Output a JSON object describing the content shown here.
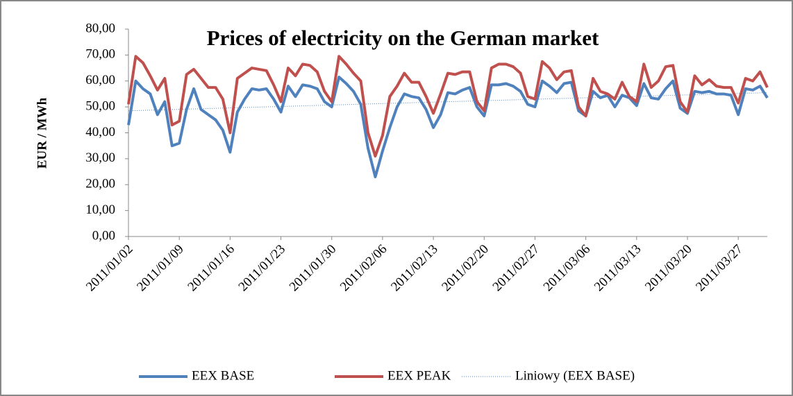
{
  "chart_data": {
    "type": "line",
    "title": "Prices of electricity on the German market",
    "y_label": "EUR / MWh",
    "categories": [
      "2011/01/02",
      null,
      null,
      null,
      null,
      null,
      null,
      "2011/01/09",
      null,
      null,
      null,
      null,
      null,
      null,
      "2011/01/16",
      null,
      null,
      null,
      null,
      null,
      null,
      "2011/01/23",
      null,
      null,
      null,
      null,
      null,
      null,
      "2011/01/30",
      null,
      null,
      null,
      null,
      null,
      null,
      "2011/02/06",
      null,
      null,
      null,
      null,
      null,
      null,
      "2011/02/13",
      null,
      null,
      null,
      null,
      null,
      null,
      "2011/02/20",
      null,
      null,
      null,
      null,
      null,
      null,
      "2011/02/27",
      null,
      null,
      null,
      null,
      null,
      null,
      "2011/03/06",
      null,
      null,
      null,
      null,
      null,
      null,
      "2011/03/13",
      null,
      null,
      null,
      null,
      null,
      null,
      "2011/03/20",
      null,
      null,
      null,
      null,
      null,
      null,
      "2011/03/27",
      null,
      null,
      null,
      null
    ],
    "series": [
      {
        "name": "EEX BASE",
        "color": "#4f81bd",
        "values": [
          43,
          60,
          57,
          55,
          47,
          52,
          35,
          36,
          49,
          57,
          49,
          47,
          45,
          41,
          32.5,
          48,
          53,
          57,
          56.5,
          57,
          53,
          48,
          58,
          54,
          58.5,
          58,
          57,
          52,
          50,
          61.5,
          59,
          56,
          51,
          34,
          23,
          33,
          42,
          50,
          55,
          54,
          53.5,
          49,
          42,
          47,
          55.5,
          55,
          56.5,
          57.5,
          50,
          46.5,
          58.5,
          58.5,
          59,
          58,
          56,
          51,
          50,
          60,
          58,
          55.5,
          59,
          59.5,
          48.5,
          46.5,
          56,
          53.5,
          54.5,
          50,
          54.5,
          53.5,
          50.5,
          59,
          53.5,
          53,
          57,
          60,
          49.5,
          47.5,
          56,
          55.5,
          56,
          55,
          55,
          54.5,
          47,
          57,
          56.5,
          58,
          53.5
        ]
      },
      {
        "name": "EEX PEAK",
        "color": "#c0504d",
        "values": [
          51,
          69.5,
          67,
          62,
          56.5,
          61,
          43,
          44.5,
          62.5,
          64.5,
          61,
          57.5,
          57.5,
          53,
          40,
          61,
          63,
          65,
          64.5,
          64,
          58.5,
          52,
          65,
          62,
          66.5,
          66,
          63.5,
          56,
          52,
          69.5,
          66.5,
          63,
          60,
          40,
          31,
          39,
          54,
          58,
          63,
          59.5,
          59.5,
          54,
          47.5,
          55,
          63,
          62.5,
          63.5,
          63.5,
          52,
          48.5,
          65,
          66.5,
          66.5,
          65.5,
          63,
          54,
          53,
          67.5,
          65,
          60.5,
          63.5,
          64,
          50,
          46.5,
          61,
          56,
          55,
          53,
          59.5,
          54,
          52,
          66.5,
          57.5,
          60,
          65.5,
          66,
          52,
          48,
          62,
          58.5,
          60.5,
          58,
          57.5,
          57.5,
          51.5,
          61,
          60,
          63.5,
          57.5
        ]
      }
    ],
    "trendline": {
      "name": "Liniowy (EEX BASE)",
      "color": "#4f81bd",
      "start": 48.5,
      "end": 55.5
    },
    "ylim": [
      0,
      80
    ],
    "yticks": [
      {
        "value": 0,
        "label": "0,00"
      },
      {
        "value": 10,
        "label": "10,00"
      },
      {
        "value": 20,
        "label": "20,00"
      },
      {
        "value": 30,
        "label": "30,00"
      },
      {
        "value": 40,
        "label": "40,00"
      },
      {
        "value": 50,
        "label": "50,00"
      },
      {
        "value": 60,
        "label": "60,00"
      },
      {
        "value": 70,
        "label": "70,00"
      },
      {
        "value": 80,
        "label": "80,00"
      }
    ],
    "legend": "bottom"
  }
}
